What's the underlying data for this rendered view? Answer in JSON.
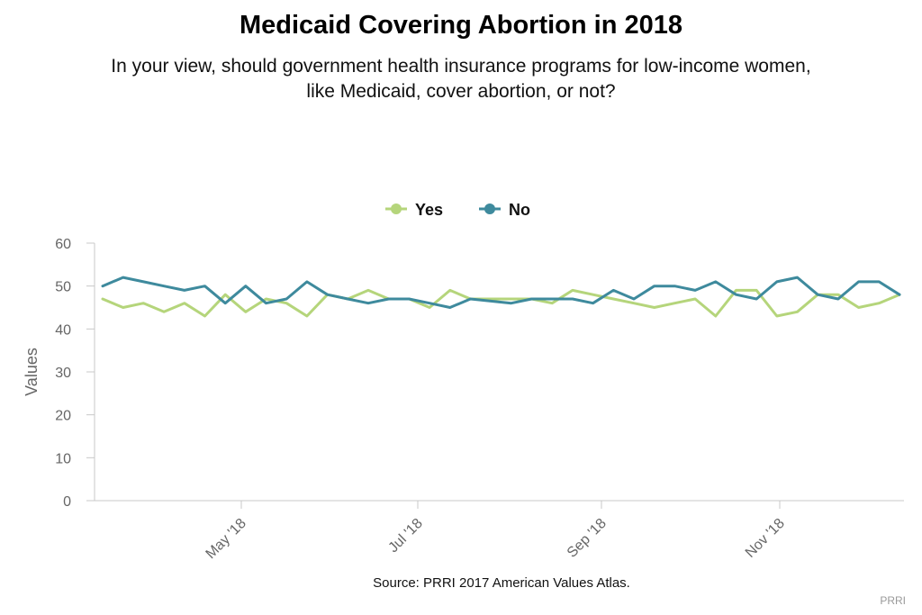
{
  "title": "Medicaid Covering Abortion in 2018",
  "subtitle": "In your view, should government health insurance programs for low-income women, like Medicaid, cover abortion, or not?",
  "source": "Source: PRRI 2017 American Values Atlas.",
  "credit": "PRRI",
  "chart_data": {
    "type": "line",
    "ylabel": "Values",
    "ylim": [
      0,
      60
    ],
    "yticks": [
      0,
      10,
      20,
      30,
      40,
      50,
      60
    ],
    "xticks": [
      "May '18",
      "Jul '18",
      "Sep '18",
      "Nov '18"
    ],
    "legend_position": "top-center",
    "grid": false,
    "series": [
      {
        "name": "Yes",
        "color": "#b5d57b",
        "values": [
          47,
          45,
          46,
          44,
          46,
          43,
          48,
          44,
          47,
          46,
          43,
          48,
          47,
          49,
          47,
          47,
          45,
          49,
          47,
          47,
          47,
          47,
          46,
          49,
          48,
          47,
          46,
          45,
          46,
          47,
          43,
          49,
          49,
          43,
          44,
          48,
          48,
          45,
          46,
          48
        ]
      },
      {
        "name": "No",
        "color": "#3e8a9d",
        "values": [
          50,
          52,
          51,
          50,
          49,
          50,
          46,
          50,
          46,
          47,
          51,
          48,
          47,
          46,
          47,
          47,
          46,
          45,
          47,
          46.5,
          46,
          47,
          47,
          47,
          46,
          49,
          47,
          50,
          50,
          49,
          51,
          48,
          47,
          51,
          52,
          48,
          47,
          51,
          51,
          48
        ]
      }
    ]
  }
}
